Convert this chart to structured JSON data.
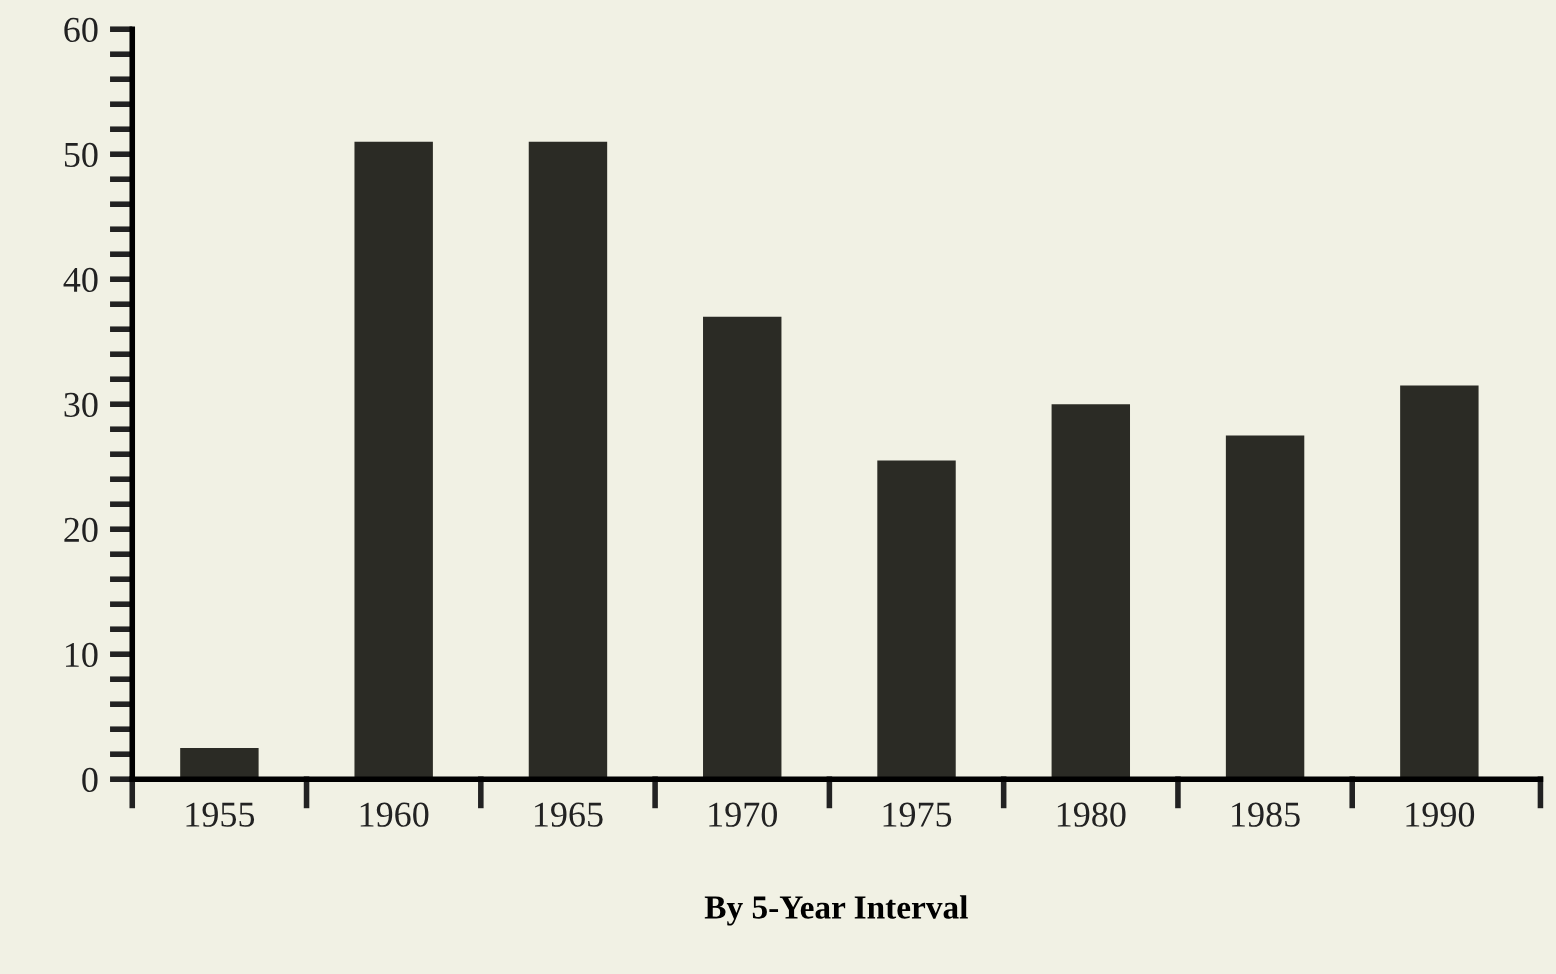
{
  "chart_data": {
    "type": "bar",
    "xlabel": "By 5-Year Interval",
    "categories": [
      "1955",
      "1960",
      "1965",
      "1970",
      "1975",
      "1980",
      "1985",
      "1990"
    ],
    "values": [
      2.5,
      51,
      51,
      37,
      25.5,
      30,
      27.5,
      31.5
    ],
    "color": "#2b2b25",
    "ylim": [
      0,
      60
    ],
    "yticks": [
      0,
      {
        "value": 2,
        "label": null
      },
      {
        "value": 4,
        "label": null
      },
      {
        "value": 6,
        "label": null
      },
      {
        "value": 8,
        "label": null
      },
      10,
      {
        "value": 12,
        "label": null
      },
      {
        "value": 14,
        "label": null
      },
      {
        "value": 16,
        "label": null
      },
      {
        "value": 18,
        "label": null
      },
      20,
      {
        "value": 22,
        "label": null
      },
      {
        "value": 24,
        "label": null
      },
      {
        "value": 26,
        "label": null
      },
      {
        "value": 28,
        "label": null
      },
      30,
      {
        "value": 32,
        "label": null
      },
      {
        "value": 34,
        "label": null
      },
      {
        "value": 36,
        "label": null
      },
      {
        "value": 38,
        "label": null
      },
      40,
      {
        "value": 42,
        "label": null
      },
      {
        "value": 44,
        "label": null
      },
      {
        "value": 46,
        "label": null
      },
      {
        "value": 48,
        "label": null
      },
      50,
      {
        "value": 52,
        "label": null
      },
      {
        "value": 54,
        "label": null
      },
      {
        "value": 56,
        "label": null
      },
      {
        "value": 58,
        "label": null
      },
      60
    ],
    "grid": false,
    "legend": false
  }
}
